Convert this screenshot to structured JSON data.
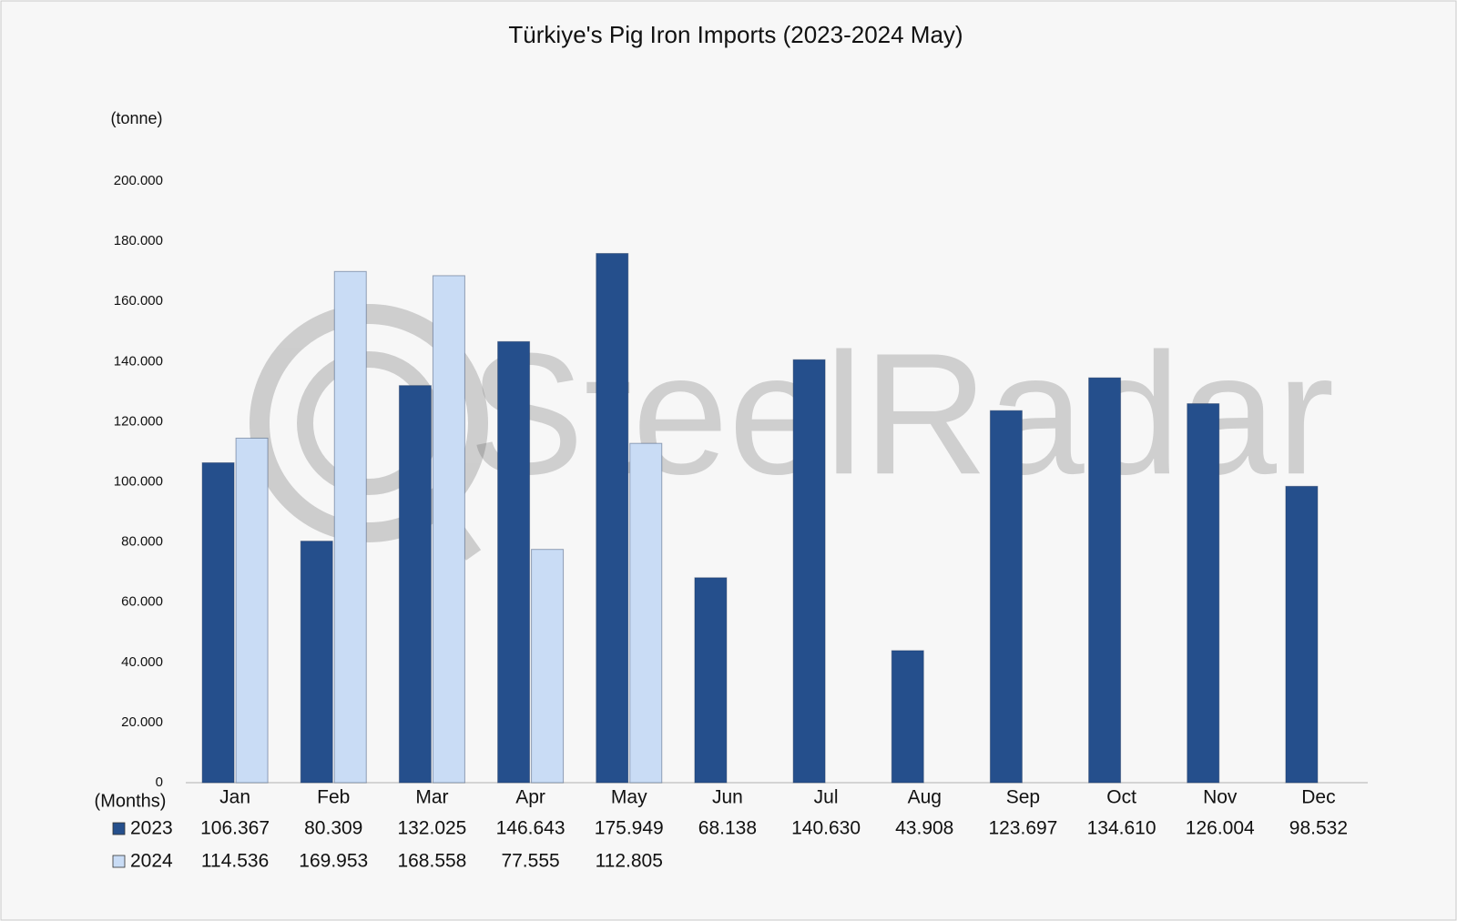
{
  "chart_data": {
    "type": "bar",
    "title": "Türkiye's Pig Iron Imports (2023-2024 May)",
    "y_label": "(tonne)",
    "x_label": "(Months)",
    "watermark": "SteelRadar",
    "categories": [
      "Jan",
      "Feb",
      "Mar",
      "Apr",
      "May",
      "Jun",
      "Jul",
      "Aug",
      "Sep",
      "Oct",
      "Nov",
      "Dec"
    ],
    "series": [
      {
        "name": "2023",
        "color": "#254f8c",
        "values": [
          106367,
          80309,
          132025,
          146643,
          175949,
          68138,
          140630,
          43908,
          123697,
          134610,
          126004,
          98532
        ],
        "value_labels": [
          "106.367",
          "80.309",
          "132.025",
          "146.643",
          "175.949",
          "68.138",
          "140.630",
          "43.908",
          "123.697",
          "134.610",
          "126.004",
          "98.532"
        ]
      },
      {
        "name": "2024",
        "color": "#c9dcf5",
        "values": [
          114536,
          169953,
          168558,
          77555,
          112805,
          null,
          null,
          null,
          null,
          null,
          null,
          null
        ],
        "value_labels": [
          "114.536",
          "169.953",
          "168.558",
          "77.555",
          "112.805",
          null,
          null,
          null,
          null,
          null,
          null,
          null
        ]
      }
    ],
    "ylim": [
      0,
      200000
    ],
    "yticks": [
      0,
      {
        "value": 20000,
        "label": "20.000"
      },
      {
        "value": 40000,
        "label": "40.000"
      },
      {
        "value": 60000,
        "label": "60.000"
      },
      {
        "value": 80000,
        "label": "80.000"
      },
      {
        "value": 100000,
        "label": "100.000"
      },
      {
        "value": 120000,
        "label": "120.000"
      },
      {
        "value": 140000,
        "label": "140.000"
      },
      {
        "value": 160000,
        "label": "160.000"
      },
      {
        "value": 180000,
        "label": "180.000"
      },
      {
        "value": 200000,
        "label": "200.000"
      }
    ],
    "grid": false
  }
}
